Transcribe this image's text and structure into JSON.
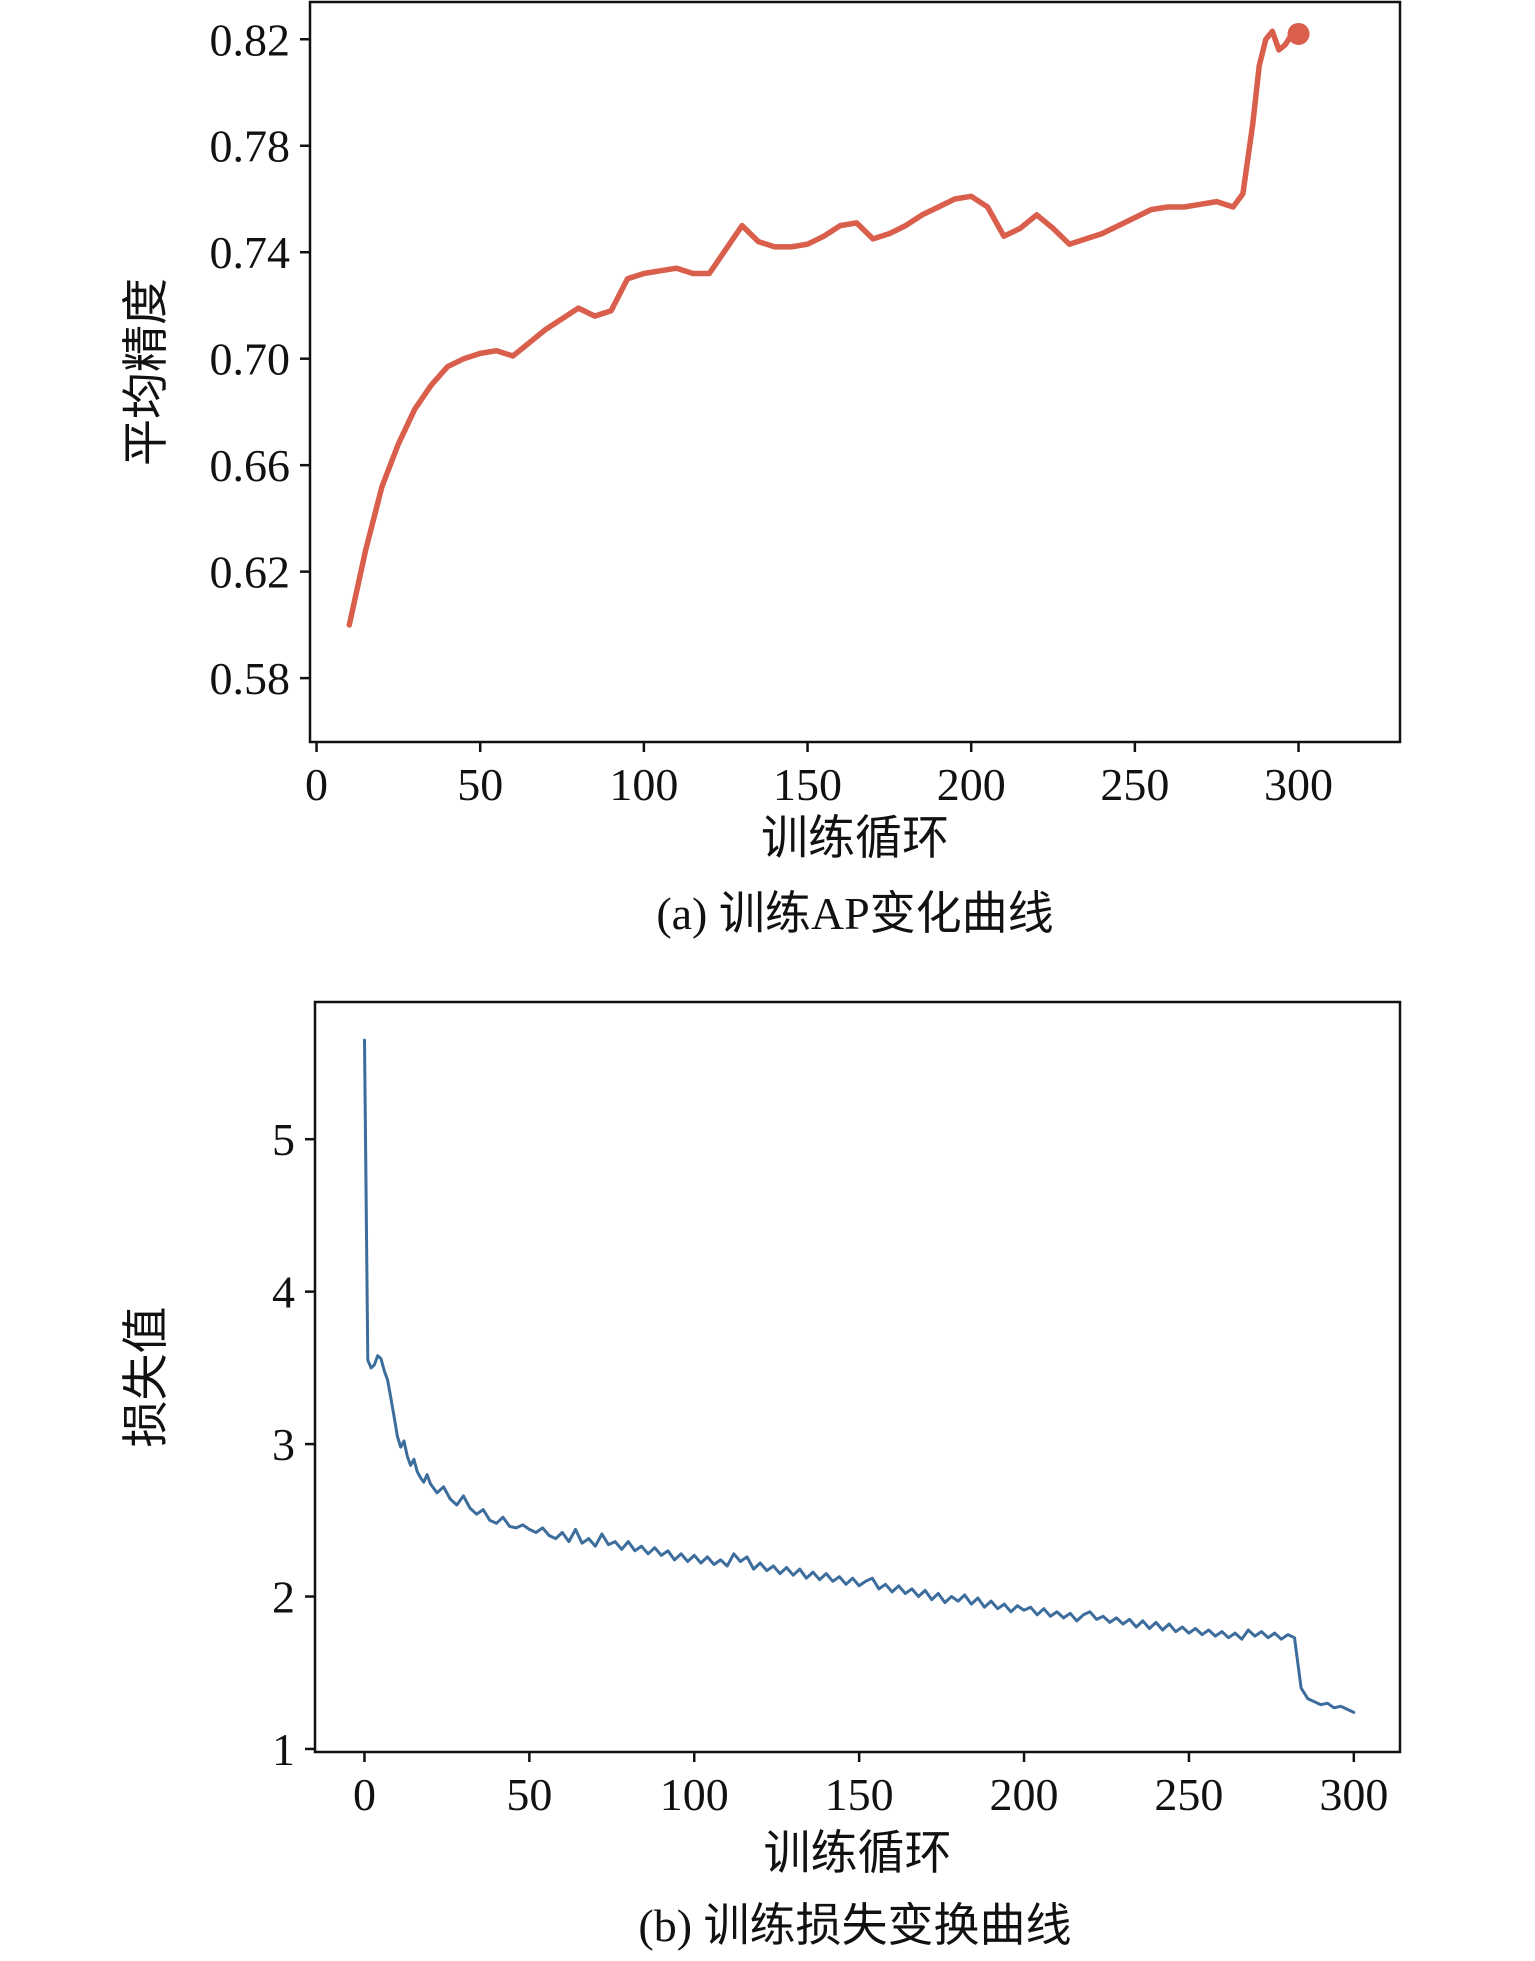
{
  "chart_data": [
    {
      "id": "ap-curve",
      "type": "line",
      "caption": "(a) 训练AP变化曲线",
      "xlabel": "训练循环",
      "ylabel": "平均精度",
      "color": "#d95f4c",
      "line_width": 5.5,
      "grid": false,
      "legend": null,
      "xlim": [
        -2,
        331
      ],
      "ylim": [
        0.556,
        0.834
      ],
      "xticks": [
        0,
        50,
        100,
        150,
        200,
        250,
        300
      ],
      "xtick_labels": [
        "0",
        "50",
        "100",
        "150",
        "200",
        "250",
        "300"
      ],
      "yticks": [
        0.58,
        0.62,
        0.66,
        0.7,
        0.74,
        0.78,
        0.82
      ],
      "ytick_labels": [
        "0.58",
        "0.62",
        "0.66",
        "0.70",
        "0.74",
        "0.78",
        "0.82"
      ],
      "end_marker": {
        "x": 300,
        "y": 0.822,
        "radius": 11
      },
      "x": [
        10,
        15,
        20,
        25,
        30,
        35,
        40,
        45,
        50,
        55,
        60,
        65,
        70,
        75,
        80,
        85,
        90,
        95,
        100,
        105,
        110,
        115,
        120,
        125,
        130,
        135,
        140,
        145,
        150,
        155,
        160,
        165,
        170,
        175,
        180,
        185,
        190,
        195,
        200,
        205,
        210,
        215,
        220,
        225,
        230,
        235,
        240,
        245,
        250,
        255,
        260,
        265,
        270,
        275,
        280,
        283,
        286,
        288,
        290,
        292,
        294,
        296,
        298,
        300
      ],
      "y": [
        0.6,
        0.628,
        0.652,
        0.668,
        0.681,
        0.69,
        0.697,
        0.7,
        0.702,
        0.703,
        0.701,
        0.706,
        0.711,
        0.715,
        0.719,
        0.716,
        0.718,
        0.73,
        0.732,
        0.733,
        0.734,
        0.732,
        0.732,
        0.741,
        0.75,
        0.744,
        0.742,
        0.742,
        0.743,
        0.746,
        0.75,
        0.751,
        0.745,
        0.747,
        0.75,
        0.754,
        0.757,
        0.76,
        0.761,
        0.757,
        0.746,
        0.749,
        0.754,
        0.749,
        0.743,
        0.745,
        0.747,
        0.75,
        0.753,
        0.756,
        0.757,
        0.757,
        0.758,
        0.759,
        0.757,
        0.762,
        0.788,
        0.81,
        0.82,
        0.823,
        0.816,
        0.818,
        0.822,
        0.822
      ]
    },
    {
      "id": "loss-curve",
      "type": "line",
      "caption": "(b) 训练损失变换曲线",
      "xlabel": "训练循环",
      "ylabel": "损失值",
      "color": "#3d6d9c",
      "line_width": 3,
      "grid": false,
      "legend": null,
      "xlim": [
        -15,
        314
      ],
      "ylim": [
        0.98,
        5.9
      ],
      "xticks": [
        0,
        50,
        100,
        150,
        200,
        250,
        300
      ],
      "xtick_labels": [
        "0",
        "50",
        "100",
        "150",
        "200",
        "250",
        "300"
      ],
      "yticks": [
        1,
        2,
        3,
        4,
        5
      ],
      "ytick_labels": [
        "1",
        "2",
        "3",
        "4",
        "5"
      ],
      "end_marker": null,
      "x": [
        0,
        1,
        2,
        3,
        4,
        5,
        6,
        7,
        8,
        9,
        10,
        11,
        12,
        13,
        14,
        15,
        16,
        17,
        18,
        19,
        20,
        22,
        24,
        26,
        28,
        30,
        32,
        34,
        36,
        38,
        40,
        42,
        44,
        46,
        48,
        50,
        52,
        54,
        56,
        58,
        60,
        62,
        64,
        66,
        68,
        70,
        72,
        74,
        76,
        78,
        80,
        82,
        84,
        86,
        88,
        90,
        92,
        94,
        96,
        98,
        100,
        102,
        104,
        106,
        108,
        110,
        112,
        114,
        116,
        118,
        120,
        122,
        124,
        126,
        128,
        130,
        132,
        134,
        136,
        138,
        140,
        142,
        144,
        146,
        148,
        150,
        152,
        154,
        156,
        158,
        160,
        162,
        164,
        166,
        168,
        170,
        172,
        174,
        176,
        178,
        180,
        182,
        184,
        186,
        188,
        190,
        192,
        194,
        196,
        198,
        200,
        202,
        204,
        206,
        208,
        210,
        212,
        214,
        216,
        218,
        220,
        222,
        224,
        226,
        228,
        230,
        232,
        234,
        236,
        238,
        240,
        242,
        244,
        246,
        248,
        250,
        252,
        254,
        256,
        258,
        260,
        262,
        264,
        266,
        268,
        270,
        272,
        274,
        276,
        278,
        280,
        282,
        284,
        286,
        288,
        290,
        292,
        294,
        296,
        298,
        300
      ],
      "y": [
        5.65,
        3.55,
        3.5,
        3.52,
        3.58,
        3.56,
        3.48,
        3.42,
        3.3,
        3.18,
        3.05,
        2.98,
        3.02,
        2.92,
        2.86,
        2.9,
        2.82,
        2.78,
        2.75,
        2.8,
        2.74,
        2.68,
        2.72,
        2.64,
        2.6,
        2.66,
        2.58,
        2.54,
        2.57,
        2.5,
        2.48,
        2.52,
        2.46,
        2.45,
        2.47,
        2.44,
        2.42,
        2.45,
        2.4,
        2.38,
        2.42,
        2.36,
        2.44,
        2.35,
        2.38,
        2.33,
        2.41,
        2.34,
        2.36,
        2.31,
        2.36,
        2.3,
        2.33,
        2.28,
        2.32,
        2.27,
        2.3,
        2.24,
        2.28,
        2.23,
        2.27,
        2.22,
        2.26,
        2.21,
        2.24,
        2.2,
        2.28,
        2.23,
        2.26,
        2.18,
        2.22,
        2.17,
        2.2,
        2.15,
        2.19,
        2.14,
        2.18,
        2.12,
        2.16,
        2.11,
        2.15,
        2.1,
        2.13,
        2.08,
        2.12,
        2.07,
        2.1,
        2.12,
        2.05,
        2.08,
        2.03,
        2.07,
        2.02,
        2.05,
        2.0,
        2.04,
        1.98,
        2.02,
        1.96,
        2.0,
        1.97,
        2.01,
        1.95,
        1.99,
        1.93,
        1.97,
        1.92,
        1.95,
        1.9,
        1.94,
        1.91,
        1.93,
        1.88,
        1.92,
        1.87,
        1.9,
        1.86,
        1.89,
        1.84,
        1.88,
        1.9,
        1.85,
        1.87,
        1.83,
        1.86,
        1.82,
        1.85,
        1.8,
        1.84,
        1.79,
        1.83,
        1.78,
        1.82,
        1.77,
        1.8,
        1.76,
        1.79,
        1.75,
        1.78,
        1.74,
        1.77,
        1.73,
        1.76,
        1.72,
        1.78,
        1.74,
        1.77,
        1.73,
        1.76,
        1.72,
        1.75,
        1.73,
        1.4,
        1.33,
        1.31,
        1.29,
        1.3,
        1.27,
        1.28,
        1.26,
        1.24
      ]
    }
  ],
  "style": {
    "axis_color": "#111111",
    "text_color": "#111111",
    "background": "#ffffff"
  }
}
